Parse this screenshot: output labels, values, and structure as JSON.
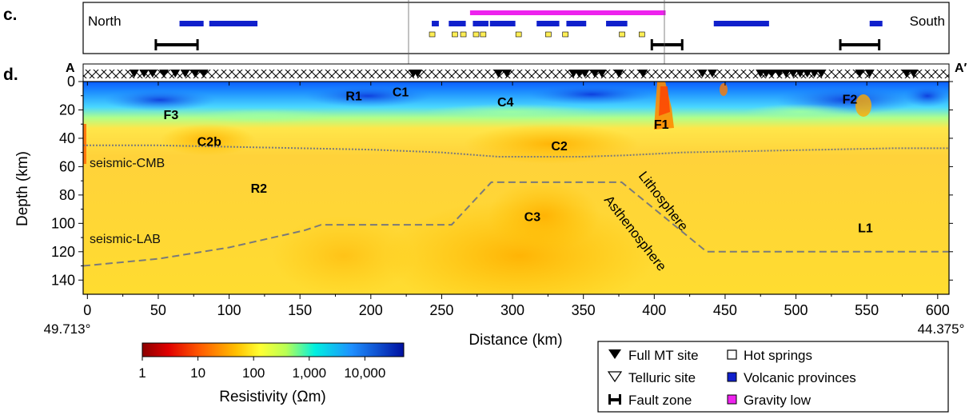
{
  "panel_c": {
    "label": "c.",
    "left_text": "North",
    "right_text": "South",
    "volcanic_provinces_km": [
      [
        65,
        82
      ],
      [
        86,
        120
      ],
      [
        243,
        248
      ],
      [
        255,
        267
      ],
      [
        272,
        283
      ],
      [
        284,
        302
      ],
      [
        317,
        333
      ],
      [
        338,
        352
      ],
      [
        366,
        381
      ],
      [
        442,
        481
      ],
      [
        552,
        561
      ]
    ],
    "gravity_low_km": [
      [
        270,
        408
      ]
    ],
    "hot_springs_km": [
      243,
      259,
      265,
      274,
      279,
      304,
      325,
      337,
      377,
      391
    ],
    "fault_zones_km": [
      [
        48,
        78
      ],
      [
        398,
        420
      ],
      [
        531,
        559
      ]
    ]
  },
  "panel_d": {
    "label": "d.",
    "profile_start": "A",
    "profile_end": "A′",
    "start_lat": "49.713°",
    "end_lat": "44.375°",
    "seismic_cmb_label": "seismic-CMB",
    "seismic_lab_label": "seismic-LAB",
    "lithosphere_label": "Lithosphere",
    "asthenosphere_label": "Asthenosphere",
    "annotations": [
      {
        "text": "R1",
        "x": 188,
        "y": 10
      },
      {
        "text": "C1",
        "x": 221,
        "y": 7
      },
      {
        "text": "C4",
        "x": 295,
        "y": 14
      },
      {
        "text": "F3",
        "x": 59,
        "y": 23
      },
      {
        "text": "C2b",
        "x": 86,
        "y": 42
      },
      {
        "text": "F1",
        "x": 405,
        "y": 30
      },
      {
        "text": "F2",
        "x": 538,
        "y": 12
      },
      {
        "text": "C2",
        "x": 333,
        "y": 45
      },
      {
        "text": "R2",
        "x": 121,
        "y": 75
      },
      {
        "text": "C3",
        "x": 314,
        "y": 95
      },
      {
        "text": "L1",
        "x": 549,
        "y": 103
      }
    ]
  },
  "chart_data": {
    "type": "heatmap",
    "xlabel": "Distance (km)",
    "ylabel": "Depth (km)",
    "xlim": [
      -3,
      608
    ],
    "ylim": [
      150,
      0
    ],
    "xticks": [
      0,
      50,
      100,
      150,
      200,
      250,
      300,
      350,
      400,
      450,
      500,
      550,
      600
    ],
    "yticks": [
      0,
      20,
      40,
      60,
      80,
      100,
      120,
      140
    ],
    "x_tick_labels": [
      "0",
      "50",
      "100",
      "150",
      "200",
      "250",
      "300",
      "350",
      "400",
      "450",
      "500",
      "550",
      "600"
    ],
    "y_tick_labels": [
      "0",
      "20",
      "40",
      "60",
      "80",
      "100",
      "120",
      "140"
    ],
    "colorbar": {
      "label": "Resistivity (Ωm)",
      "scale": "log",
      "range": [
        1,
        50000
      ],
      "tick_values": [
        1,
        10,
        100,
        1000,
        10000
      ],
      "tick_labels": [
        "1",
        "10",
        "100",
        "1,000",
        "10,000"
      ],
      "colors": [
        "#8b0000",
        "#ff0000",
        "#ff8800",
        "#ffdd00",
        "#ffff33",
        "#00ffdd",
        "#0088ff",
        "#0000aa"
      ]
    },
    "full_mt_sites_km": [
      33,
      40,
      46,
      54,
      62,
      69,
      76,
      82,
      230,
      233,
      290,
      296,
      343,
      347,
      351,
      358,
      363,
      375,
      392,
      434,
      441,
      475,
      479,
      483,
      488,
      493,
      498,
      503,
      508,
      513,
      518,
      545,
      552,
      578,
      583
    ],
    "seismic_cmb_depth": {
      "x": [
        -3,
        50,
        100,
        150,
        200,
        250,
        290,
        350,
        380,
        420,
        470,
        520,
        570,
        608
      ],
      "y": [
        45,
        45,
        46,
        47,
        48,
        50,
        53,
        53,
        52,
        50,
        49,
        48,
        47,
        47
      ]
    },
    "seismic_lab_depth": {
      "x": [
        -3,
        50,
        100,
        153,
        165,
        257,
        285,
        377,
        437,
        608
      ],
      "y": [
        130,
        125,
        117,
        105,
        101,
        101,
        71,
        71,
        120,
        120
      ]
    }
  },
  "legend": {
    "full_mt_site": "Full MT site",
    "telluric_site": "Telluric site",
    "fault_zone": "Fault zone",
    "hot_springs": "Hot springs",
    "volcanic_provinces": "Volcanic provinces",
    "gravity_low": "Gravity low"
  },
  "colors": {
    "volcanic": "#1020cc",
    "gravity_low": "#ee22ee",
    "hot_springs": "#ffee55",
    "fault": "#000000",
    "boundary_line": "#7a7a7a"
  }
}
